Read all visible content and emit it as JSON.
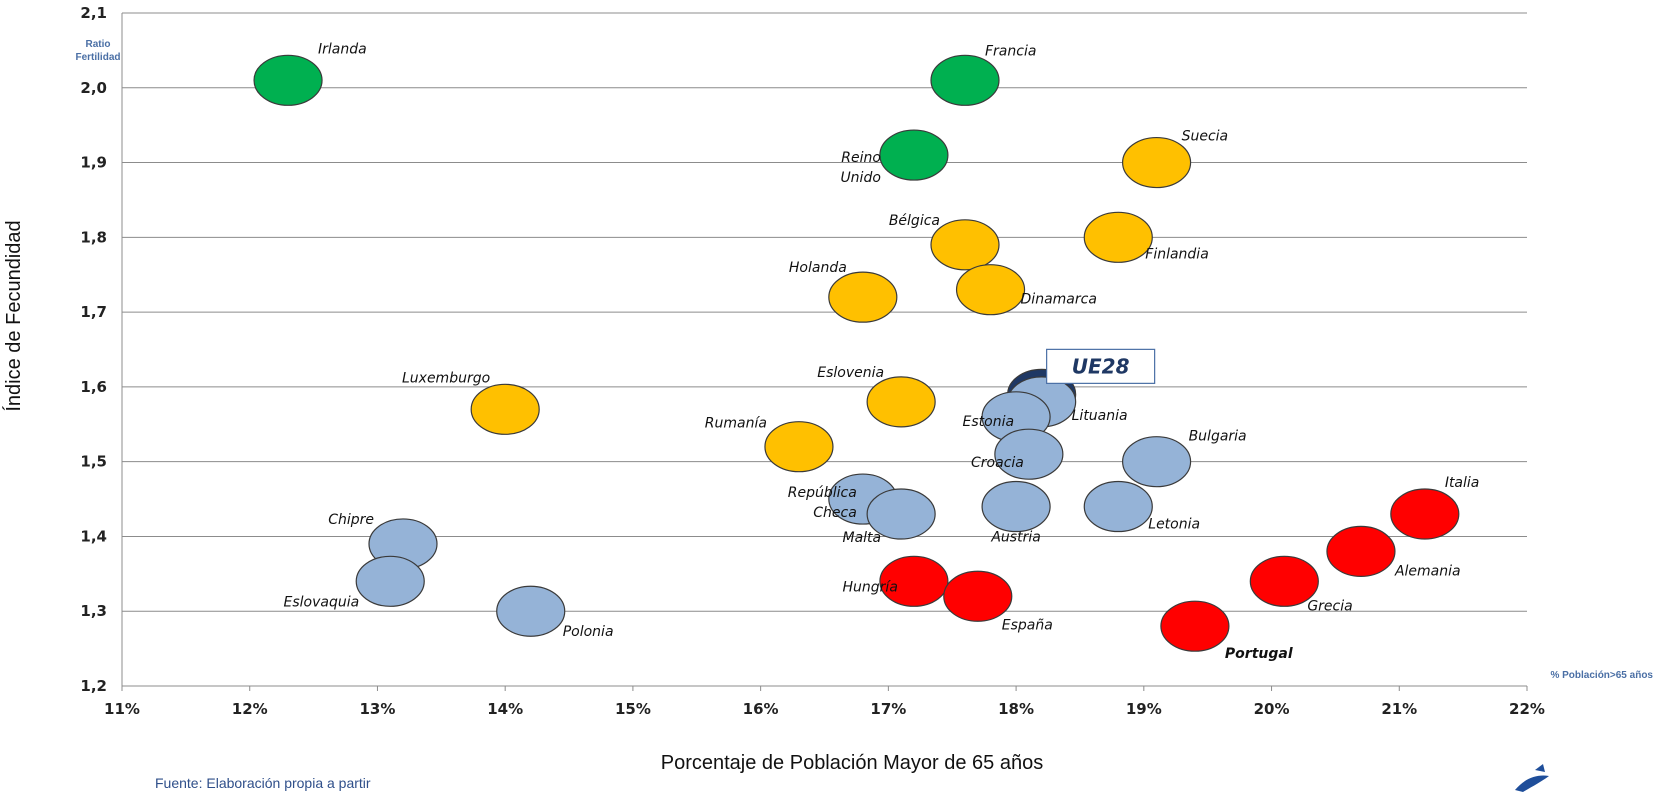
{
  "chart_data": {
    "type": "scatter",
    "xlabel": "Porcentaje de Población Mayor de 65 años",
    "ylabel": "Índice de Fecundidad",
    "corner_y_label": [
      "Ratio",
      "Fertilidad"
    ],
    "corner_x_label": "% Población>65 años",
    "xlim": [
      0.11,
      0.22
    ],
    "ylim": [
      1.2,
      2.1
    ],
    "x_ticks": [
      "11%",
      "12%",
      "13%",
      "14%",
      "15%",
      "16%",
      "17%",
      "18%",
      "19%",
      "20%",
      "21%",
      "22%"
    ],
    "y_ticks": [
      "1,2",
      "1,3",
      "1,4",
      "1,5",
      "1,6",
      "1,7",
      "1,8",
      "1,9",
      "2,0",
      "2,1"
    ],
    "grid": "horizontal",
    "colors": {
      "green": "#00b050",
      "orange": "#ffc000",
      "blue": "#95b3d7",
      "red": "#ff0000",
      "navy": "#1f3864"
    },
    "points": [
      {
        "name": "Irlanda",
        "x": 12.3,
        "y": 2.01,
        "color": "green"
      },
      {
        "name": "Francia",
        "x": 17.6,
        "y": 2.01,
        "color": "green"
      },
      {
        "name": "Reino Unido",
        "lines": [
          "Reino",
          "Unido"
        ],
        "x": 17.2,
        "y": 1.91,
        "color": "green"
      },
      {
        "name": "Suecia",
        "x": 19.1,
        "y": 1.9,
        "color": "orange"
      },
      {
        "name": "Bélgica",
        "x": 17.6,
        "y": 1.79,
        "color": "orange"
      },
      {
        "name": "Finlandia",
        "x": 18.8,
        "y": 1.8,
        "color": "orange"
      },
      {
        "name": "Holanda",
        "x": 16.8,
        "y": 1.72,
        "color": "orange"
      },
      {
        "name": "Dinamarca",
        "x": 17.8,
        "y": 1.73,
        "color": "orange"
      },
      {
        "name": "Luxemburgo",
        "x": 14.0,
        "y": 1.57,
        "color": "orange"
      },
      {
        "name": "Eslovenia",
        "x": 17.1,
        "y": 1.58,
        "color": "orange"
      },
      {
        "name": "Rumanía",
        "x": 16.3,
        "y": 1.52,
        "color": "orange"
      },
      {
        "name": "UE28",
        "x": 18.2,
        "y": 1.59,
        "color": "navy"
      },
      {
        "name": "Lituania",
        "x": 18.2,
        "y": 1.58,
        "color": "blue"
      },
      {
        "name": "Estonia",
        "x": 18.0,
        "y": 1.56,
        "color": "blue"
      },
      {
        "name": "Croacia",
        "x": 18.1,
        "y": 1.51,
        "color": "blue"
      },
      {
        "name": "Bulgaria",
        "x": 19.1,
        "y": 1.5,
        "color": "blue"
      },
      {
        "name": "República Checa",
        "lines": [
          "República",
          "Checa"
        ],
        "x": 16.8,
        "y": 1.45,
        "color": "blue"
      },
      {
        "name": "Malta",
        "x": 17.1,
        "y": 1.43,
        "color": "blue"
      },
      {
        "name": "Austria",
        "x": 18.0,
        "y": 1.44,
        "color": "blue"
      },
      {
        "name": "Letonia",
        "x": 18.8,
        "y": 1.44,
        "color": "blue"
      },
      {
        "name": "Chipre",
        "x": 13.2,
        "y": 1.39,
        "color": "blue"
      },
      {
        "name": "Eslovaquia",
        "x": 13.1,
        "y": 1.34,
        "color": "blue"
      },
      {
        "name": "Polonia",
        "x": 14.2,
        "y": 1.3,
        "color": "blue"
      },
      {
        "name": "Hungría",
        "x": 17.2,
        "y": 1.34,
        "color": "red"
      },
      {
        "name": "España",
        "x": 17.7,
        "y": 1.32,
        "color": "red"
      },
      {
        "name": "Portugal",
        "x": 19.4,
        "y": 1.28,
        "color": "red"
      },
      {
        "name": "Grecia",
        "x": 20.1,
        "y": 1.34,
        "color": "red"
      },
      {
        "name": "Alemania",
        "x": 20.7,
        "y": 1.38,
        "color": "red"
      },
      {
        "name": "Italia",
        "x": 21.2,
        "y": 1.43,
        "color": "red"
      }
    ]
  },
  "source_note": "Fuente: Elaboración propia a partir"
}
